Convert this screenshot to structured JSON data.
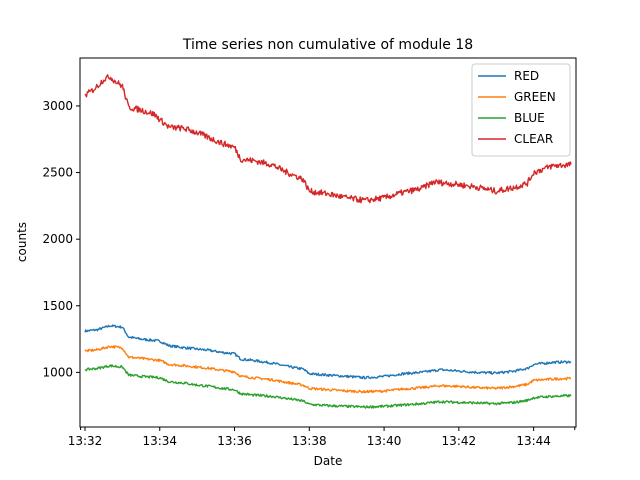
{
  "chart_data": {
    "type": "line",
    "title": "Time series non cumulative of module 18",
    "xlabel": "Date",
    "ylabel": "counts",
    "x_tick_labels": [
      "13:32",
      "13:34",
      "13:36",
      "13:38",
      "13:40",
      "13:42",
      "13:44"
    ],
    "y_ticks": [
      1000,
      1500,
      2000,
      2500,
      3000
    ],
    "xlim": [
      "13:31:52",
      "13:45:08"
    ],
    "ylim": [
      590,
      3360
    ],
    "grid": false,
    "legend_position": "top-right",
    "series": [
      {
        "name": "RED",
        "color": "#1f77b4",
        "points": [
          [
            "13:32:00",
            1310
          ],
          [
            "13:32:20",
            1320
          ],
          [
            "13:32:40",
            1350
          ],
          [
            "13:33:00",
            1340
          ],
          [
            "13:33:10",
            1265
          ],
          [
            "13:33:30",
            1250
          ],
          [
            "13:34:00",
            1235
          ],
          [
            "13:34:15",
            1200
          ],
          [
            "13:34:40",
            1185
          ],
          [
            "13:35:00",
            1175
          ],
          [
            "13:35:20",
            1165
          ],
          [
            "13:35:40",
            1150
          ],
          [
            "13:36:00",
            1140
          ],
          [
            "13:36:10",
            1100
          ],
          [
            "13:36:30",
            1090
          ],
          [
            "13:37:00",
            1070
          ],
          [
            "13:37:30",
            1040
          ],
          [
            "13:37:50",
            1025
          ],
          [
            "13:38:00",
            990
          ],
          [
            "13:38:30",
            980
          ],
          [
            "13:39:00",
            970
          ],
          [
            "13:39:30",
            960
          ],
          [
            "13:40:00",
            970
          ],
          [
            "13:40:30",
            990
          ],
          [
            "13:41:00",
            1000
          ],
          [
            "13:41:30",
            1020
          ],
          [
            "13:42:00",
            1010
          ],
          [
            "13:42:30",
            1000
          ],
          [
            "13:43:00",
            995
          ],
          [
            "13:43:30",
            1010
          ],
          [
            "13:43:50",
            1030
          ],
          [
            "13:44:00",
            1060
          ],
          [
            "13:44:30",
            1075
          ],
          [
            "13:45:00",
            1080
          ]
        ]
      },
      {
        "name": "GREEN",
        "color": "#ff7f0e",
        "points": [
          [
            "13:32:00",
            1160
          ],
          [
            "13:32:20",
            1170
          ],
          [
            "13:32:40",
            1195
          ],
          [
            "13:33:00",
            1185
          ],
          [
            "13:33:10",
            1115
          ],
          [
            "13:33:30",
            1105
          ],
          [
            "13:34:00",
            1090
          ],
          [
            "13:34:15",
            1060
          ],
          [
            "13:34:40",
            1050
          ],
          [
            "13:35:00",
            1040
          ],
          [
            "13:35:20",
            1030
          ],
          [
            "13:35:40",
            1015
          ],
          [
            "13:36:00",
            1005
          ],
          [
            "13:36:10",
            970
          ],
          [
            "13:36:30",
            960
          ],
          [
            "13:37:00",
            945
          ],
          [
            "13:37:30",
            920
          ],
          [
            "13:37:50",
            905
          ],
          [
            "13:38:00",
            880
          ],
          [
            "13:38:30",
            870
          ],
          [
            "13:39:00",
            860
          ],
          [
            "13:39:30",
            855
          ],
          [
            "13:40:00",
            860
          ],
          [
            "13:40:30",
            875
          ],
          [
            "13:41:00",
            885
          ],
          [
            "13:41:30",
            900
          ],
          [
            "13:42:00",
            895
          ],
          [
            "13:42:30",
            885
          ],
          [
            "13:43:00",
            880
          ],
          [
            "13:43:30",
            895
          ],
          [
            "13:43:50",
            910
          ],
          [
            "13:44:00",
            940
          ],
          [
            "13:44:30",
            950
          ],
          [
            "13:45:00",
            955
          ]
        ]
      },
      {
        "name": "BLUE",
        "color": "#2ca02c",
        "points": [
          [
            "13:32:00",
            1020
          ],
          [
            "13:32:20",
            1030
          ],
          [
            "13:32:40",
            1050
          ],
          [
            "13:33:00",
            1040
          ],
          [
            "13:33:10",
            980
          ],
          [
            "13:33:30",
            970
          ],
          [
            "13:34:00",
            960
          ],
          [
            "13:34:15",
            930
          ],
          [
            "13:34:40",
            920
          ],
          [
            "13:35:00",
            905
          ],
          [
            "13:35:20",
            895
          ],
          [
            "13:35:40",
            880
          ],
          [
            "13:36:00",
            870
          ],
          [
            "13:36:10",
            840
          ],
          [
            "13:36:30",
            830
          ],
          [
            "13:37:00",
            820
          ],
          [
            "13:37:30",
            800
          ],
          [
            "13:37:50",
            785
          ],
          [
            "13:38:00",
            760
          ],
          [
            "13:38:30",
            750
          ],
          [
            "13:39:00",
            745
          ],
          [
            "13:39:30",
            740
          ],
          [
            "13:40:00",
            745
          ],
          [
            "13:40:30",
            755
          ],
          [
            "13:41:00",
            765
          ],
          [
            "13:41:30",
            780
          ],
          [
            "13:42:00",
            775
          ],
          [
            "13:42:30",
            770
          ],
          [
            "13:43:00",
            765
          ],
          [
            "13:43:30",
            775
          ],
          [
            "13:43:50",
            790
          ],
          [
            "13:44:00",
            810
          ],
          [
            "13:44:30",
            820
          ],
          [
            "13:45:00",
            825
          ]
        ]
      },
      {
        "name": "CLEAR",
        "color": "#d62728",
        "points": [
          [
            "13:32:00",
            3080
          ],
          [
            "13:32:10",
            3110
          ],
          [
            "13:32:20",
            3150
          ],
          [
            "13:32:30",
            3200
          ],
          [
            "13:32:40",
            3220
          ],
          [
            "13:32:50",
            3180
          ],
          [
            "13:33:00",
            3150
          ],
          [
            "13:33:10",
            2990
          ],
          [
            "13:33:30",
            2970
          ],
          [
            "13:33:50",
            2940
          ],
          [
            "13:34:00",
            2900
          ],
          [
            "13:34:15",
            2840
          ],
          [
            "13:34:40",
            2830
          ],
          [
            "13:35:00",
            2800
          ],
          [
            "13:35:20",
            2760
          ],
          [
            "13:35:40",
            2720
          ],
          [
            "13:36:00",
            2690
          ],
          [
            "13:36:10",
            2600
          ],
          [
            "13:36:30",
            2590
          ],
          [
            "13:37:00",
            2560
          ],
          [
            "13:37:20",
            2510
          ],
          [
            "13:37:40",
            2470
          ],
          [
            "13:37:50",
            2450
          ],
          [
            "13:38:00",
            2360
          ],
          [
            "13:38:30",
            2340
          ],
          [
            "13:39:00",
            2310
          ],
          [
            "13:39:30",
            2290
          ],
          [
            "13:40:00",
            2310
          ],
          [
            "13:40:30",
            2350
          ],
          [
            "13:41:00",
            2380
          ],
          [
            "13:41:20",
            2430
          ],
          [
            "13:41:40",
            2420
          ],
          [
            "13:42:00",
            2410
          ],
          [
            "13:42:30",
            2390
          ],
          [
            "13:43:00",
            2360
          ],
          [
            "13:43:30",
            2390
          ],
          [
            "13:43:50",
            2420
          ],
          [
            "13:44:00",
            2500
          ],
          [
            "13:44:30",
            2550
          ],
          [
            "13:45:00",
            2560
          ]
        ]
      }
    ]
  }
}
